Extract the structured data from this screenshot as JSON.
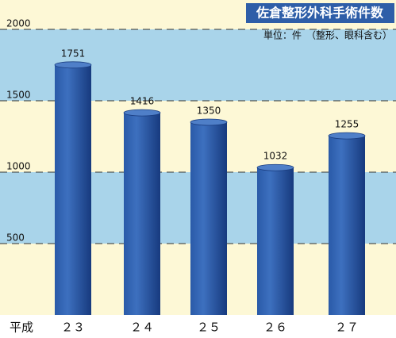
{
  "chart_data": {
    "type": "bar",
    "title": "佐倉整形外科手術件数",
    "subtitle": "単位：件　（整形、眼科含む）",
    "xlabel": "平成",
    "categories": [
      "２３",
      "２４",
      "２５",
      "２６",
      "２７"
    ],
    "values": [
      1751,
      1416,
      1350,
      1032,
      1255
    ],
    "color": "#1f4a94",
    "ylim": [
      0,
      2000
    ],
    "yticks": [
      500,
      1000,
      1500,
      2000
    ],
    "grid": true
  }
}
